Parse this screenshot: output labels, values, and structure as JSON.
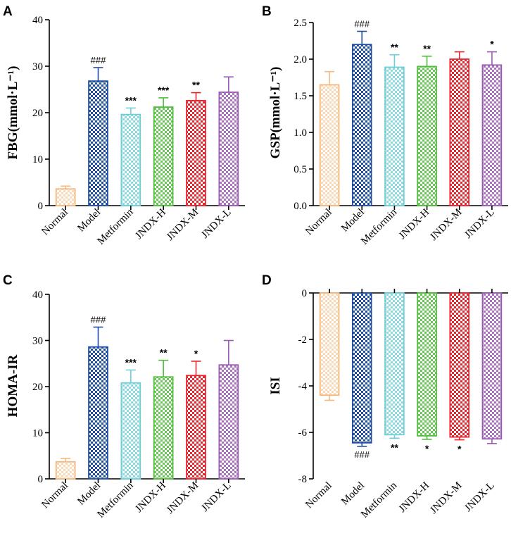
{
  "colors": [
    "#f5b97f",
    "#1f4fa3",
    "#6fcfd8",
    "#4fbf3a",
    "#e8242c",
    "#9b59b6"
  ],
  "chart_data": [
    {
      "type": "bar",
      "panel": "A",
      "ylabel": "FBG(mmol·L⁻¹)",
      "categories": [
        "Normal",
        "Model",
        "Metformin",
        "JNDX-H",
        "JNDX-M",
        "JNDX-L"
      ],
      "values": [
        3.6,
        26.8,
        19.6,
        21.2,
        22.6,
        24.4
      ],
      "errors": [
        0.6,
        2.9,
        1.4,
        2.0,
        1.7,
        3.3
      ],
      "ylim": [
        0,
        40
      ],
      "yticks": [
        "0",
        "10",
        "20",
        "30",
        "40"
      ],
      "annotations": [
        "",
        "###",
        "***",
        "***",
        "**",
        ""
      ]
    },
    {
      "type": "bar",
      "panel": "B",
      "ylabel": "GSP(mmol·L⁻¹)",
      "categories": [
        "Normal",
        "Model",
        "Metformin",
        "JNDX-H",
        "JNDX-M",
        "JNDX-L"
      ],
      "values": [
        1.65,
        2.2,
        1.89,
        1.9,
        2.0,
        1.92
      ],
      "errors": [
        0.18,
        0.18,
        0.17,
        0.14,
        0.1,
        0.18
      ],
      "ylim": [
        0,
        2.5
      ],
      "yticks": [
        "0.0",
        "0.5",
        "1.0",
        "1.5",
        "2.0",
        "2.5"
      ],
      "annotations": [
        "",
        "###",
        "**",
        "**",
        "",
        "*"
      ]
    },
    {
      "type": "bar",
      "panel": "C",
      "ylabel": "HOMA-IR",
      "categories": [
        "Normal",
        "Model",
        "Metformin",
        "JNDX-H",
        "JNDX-M",
        "JNDX-L"
      ],
      "values": [
        3.7,
        28.6,
        20.8,
        22.1,
        22.4,
        24.7
      ],
      "errors": [
        0.7,
        4.3,
        2.8,
        3.6,
        3.1,
        5.3
      ],
      "ylim": [
        0,
        40
      ],
      "yticks": [
        "0",
        "10",
        "20",
        "30",
        "40"
      ],
      "annotations": [
        "",
        "###",
        "***",
        "**",
        "*",
        ""
      ]
    },
    {
      "type": "bar",
      "panel": "D",
      "ylabel": "ISI",
      "categories": [
        "Normal",
        "Model",
        "Metformin",
        "JNDX-H",
        "JNDX-M",
        "JNDX-L"
      ],
      "values": [
        -4.4,
        -6.45,
        -6.1,
        -6.15,
        -6.2,
        -6.28
      ],
      "errors": [
        0.22,
        0.15,
        0.15,
        0.15,
        0.12,
        0.2
      ],
      "ylim": [
        -8,
        0
      ],
      "yticks": [
        "0",
        "-2",
        "-4",
        "-6",
        "-8"
      ],
      "annotations": [
        "",
        "###",
        "**",
        "*",
        "*",
        ""
      ]
    }
  ]
}
